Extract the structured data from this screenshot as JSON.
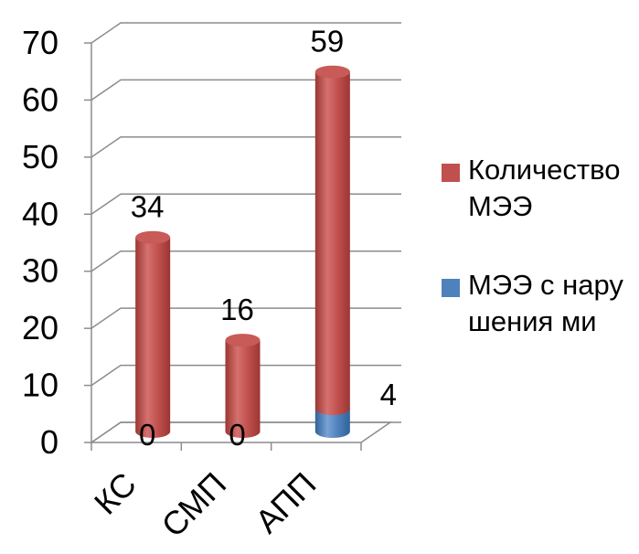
{
  "chart_data": {
    "type": "bar",
    "stacked": true,
    "style": "3d-cylinder",
    "categories": [
      "КС",
      "СМП",
      "АПП"
    ],
    "series": [
      {
        "name": "МЭЭ с нарушениями",
        "legend_label": "МЭЭ с нарушения ми",
        "color": "#4F81BD",
        "values": [
          0,
          0,
          4
        ]
      },
      {
        "name": "Количество МЭЭ",
        "legend_label": "Количество МЭЭ",
        "color": "#C0504D",
        "values": [
          34,
          16,
          59
        ]
      }
    ],
    "y_ticks": [
      "0",
      "10",
      "20",
      "30",
      "40",
      "50",
      "60",
      "70"
    ],
    "ylim": [
      0,
      70
    ],
    "grid": true,
    "legend_position": "right",
    "title": "",
    "xlabel": "",
    "ylabel": ""
  }
}
